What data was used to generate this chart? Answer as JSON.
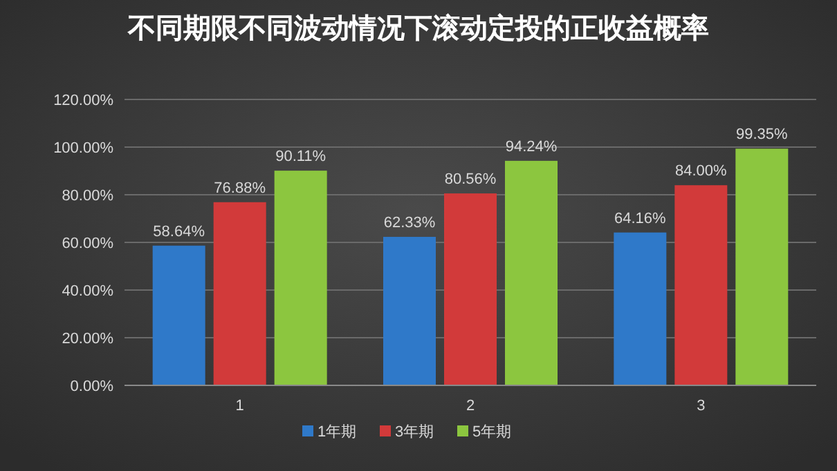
{
  "chart_data": {
    "type": "bar",
    "title": "不同期限不同波动情况下滚动定投的正收益概率",
    "categories": [
      "1",
      "2",
      "3"
    ],
    "series": [
      {
        "name": "1年期",
        "color": "#2f79c9",
        "values": [
          58.64,
          62.33,
          64.16
        ],
        "value_labels": [
          "58.64%",
          "62.33%",
          "64.16%"
        ]
      },
      {
        "name": "3年期",
        "color": "#d23a3a",
        "values": [
          76.88,
          80.56,
          84.0
        ],
        "value_labels": [
          "76.88%",
          "80.56%",
          "84.00%"
        ]
      },
      {
        "name": "5年期",
        "color": "#8cc63f",
        "values": [
          90.11,
          94.24,
          99.35
        ],
        "value_labels": [
          "90.11%",
          "94.24%",
          "99.35%"
        ]
      }
    ],
    "ylim": [
      0,
      120
    ],
    "yticks": [
      {
        "value": 0,
        "label": "0.00%"
      },
      {
        "value": 20,
        "label": "20.00%"
      },
      {
        "value": 40,
        "label": "40.00%"
      },
      {
        "value": 60,
        "label": "60.00%"
      },
      {
        "value": 80,
        "label": "80.00%"
      },
      {
        "value": 100,
        "label": "100.00%"
      },
      {
        "value": 120,
        "label": "120.00%"
      }
    ],
    "grid": "y",
    "legend": "bottom"
  }
}
